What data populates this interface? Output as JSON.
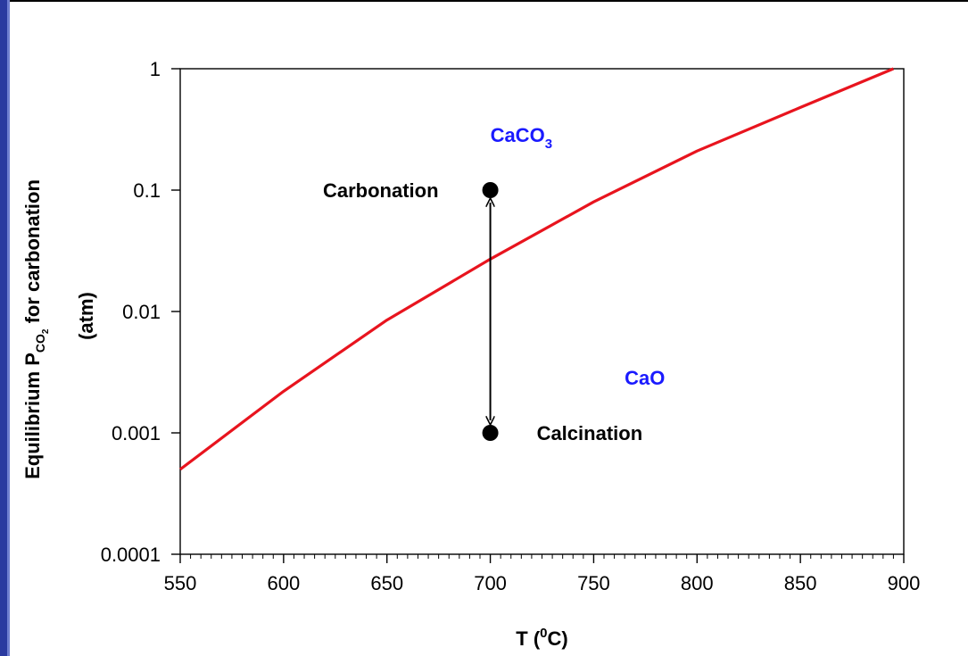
{
  "chart_data": {
    "type": "line",
    "xlabel": {
      "main": "T (",
      "sup": "0",
      "tail": "C)"
    },
    "ylabel": {
      "line1_main": "Equilibrium P",
      "line1_sub": "CO",
      "line1_subsub": "2",
      "line1_tail": "  for carbonation",
      "line2": "(atm)"
    },
    "xlim": [
      550,
      900
    ],
    "ylim": [
      0.0001,
      1
    ],
    "yscale": "log",
    "x_ticks": [
      550,
      600,
      650,
      700,
      750,
      800,
      850,
      900
    ],
    "x_tick_labels": [
      "550",
      "600",
      "650",
      "700",
      "750",
      "800",
      "850",
      "900"
    ],
    "y_ticks": [
      0.0001,
      0.001,
      0.01,
      0.1,
      1
    ],
    "y_tick_labels": [
      "0.0001",
      "0.001",
      "0.01",
      "0.1",
      "1"
    ],
    "series": [
      {
        "color": "#e8141e",
        "points": [
          [
            550,
            0.0005
          ],
          [
            600,
            0.0022
          ],
          [
            650,
            0.0085
          ],
          [
            700,
            0.027
          ],
          [
            750,
            0.08
          ],
          [
            800,
            0.21
          ],
          [
            850,
            0.48
          ],
          [
            895,
            1.0
          ]
        ]
      }
    ],
    "markers": [
      {
        "x": 700,
        "y": 0.1,
        "label": "Carbonation"
      },
      {
        "x": 700,
        "y": 0.001,
        "label": "Calcination"
      }
    ],
    "regions": [
      {
        "label_main": "CaCO",
        "label_sub": "3",
        "x": 700,
        "y": 0.25,
        "color": "#1a1aff"
      },
      {
        "label_main": "CaO",
        "label_sub": "",
        "x": 765,
        "y": 0.0025,
        "color": "#1a1aff"
      }
    ],
    "arrow": {
      "x": 700,
      "from": 0.001,
      "to": 0.1
    },
    "grid": false
  }
}
